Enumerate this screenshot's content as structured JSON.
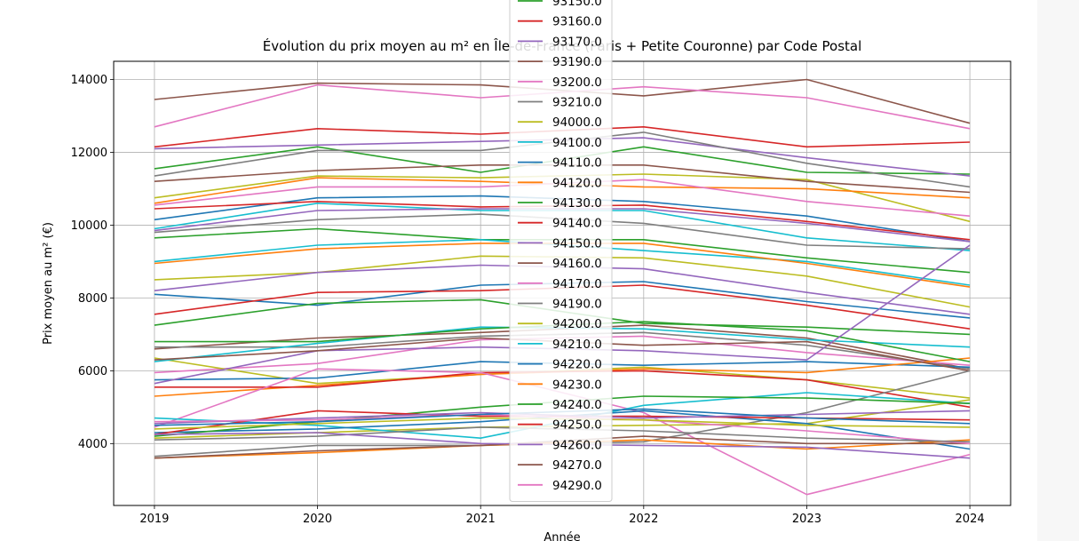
{
  "chart_data": {
    "type": "line",
    "title": "Évolution du prix moyen au m² en Île-de-France (Paris + Petite Couronne) par Code Postal",
    "xlabel": "Année",
    "ylabel": "Prix moyen au m² (€)",
    "x": [
      2019,
      2020,
      2021,
      2022,
      2023,
      2024
    ],
    "xlim": [
      2018.75,
      2024.25
    ],
    "ylim": [
      2300,
      14500
    ],
    "yticks": [
      4000,
      6000,
      8000,
      10000,
      12000,
      14000
    ],
    "xtick_labels": [
      "2019",
      "2020",
      "2021",
      "2022",
      "2023",
      "2024"
    ],
    "ytick_labels": [
      "4000",
      "6000",
      "8000",
      "10000",
      "12000",
      "14000"
    ],
    "grid": true,
    "legend_placement": "top-center",
    "series": [
      {
        "name": "93150.0",
        "color": "#2ca02c",
        "values": [
          11550,
          12150,
          11450,
          12150,
          11450,
          11400
        ]
      },
      {
        "name": "93160.0",
        "color": "#d62728",
        "values": [
          12150,
          12650,
          12500,
          12700,
          12150,
          12280
        ]
      },
      {
        "name": "93170.0",
        "color": "#9467bd",
        "values": [
          12100,
          12200,
          12300,
          12400,
          11850,
          11350
        ]
      },
      {
        "name": "93190.0",
        "color": "#8c564b",
        "values": [
          13450,
          13900,
          13850,
          13550,
          14000,
          12800
        ]
      },
      {
        "name": "93200.0",
        "color": "#e377c2",
        "values": [
          12700,
          13850,
          13500,
          13800,
          13500,
          12650
        ]
      },
      {
        "name": "93210.0",
        "color": "#7f7f7f",
        "values": [
          11350,
          12050,
          12050,
          12550,
          11700,
          11050
        ]
      },
      {
        "name": "94000.0",
        "color": "#bcbd22",
        "values": [
          10750,
          11350,
          11300,
          11400,
          11250,
          10100
        ]
      },
      {
        "name": "94100.0",
        "color": "#17becf",
        "values": [
          9900,
          10600,
          10400,
          10400,
          9650,
          9300
        ]
      },
      {
        "name": "94110.0",
        "color": "#1f77b4",
        "values": [
          10150,
          10750,
          10800,
          10650,
          10250,
          9550
        ]
      },
      {
        "name": "94120.0",
        "color": "#ff7f0e",
        "values": [
          10600,
          11300,
          11200,
          11050,
          11000,
          10750
        ]
      },
      {
        "name": "94130.0",
        "color": "#2ca02c",
        "values": [
          9650,
          9900,
          9600,
          9600,
          9100,
          8700
        ]
      },
      {
        "name": "94140.0",
        "color": "#d62728",
        "values": [
          10450,
          10650,
          10500,
          10550,
          10100,
          9600
        ]
      },
      {
        "name": "94150.0",
        "color": "#9467bd",
        "values": [
          9850,
          10400,
          10450,
          10450,
          10050,
          9550
        ]
      },
      {
        "name": "94160.0",
        "color": "#8c564b",
        "values": [
          11200,
          11500,
          11650,
          11650,
          11200,
          10900
        ]
      },
      {
        "name": "94170.0",
        "color": "#e377c2",
        "values": [
          10550,
          11050,
          11050,
          11250,
          10650,
          10250
        ]
      },
      {
        "name": "94190.0",
        "color": "#7f7f7f",
        "values": [
          9800,
          10150,
          10300,
          10050,
          9450,
          9350
        ]
      },
      {
        "name": "94200.0",
        "color": "#bcbd22",
        "values": [
          8500,
          8700,
          9150,
          9100,
          8600,
          7750
        ]
      },
      {
        "name": "94210.0",
        "color": "#17becf",
        "values": [
          9000,
          9450,
          9600,
          9300,
          9000,
          8350
        ]
      },
      {
        "name": "94220.0",
        "color": "#1f77b4",
        "values": [
          8100,
          7800,
          8350,
          8450,
          7900,
          7450
        ]
      },
      {
        "name": "94230.0",
        "color": "#ff7f0e",
        "values": [
          8950,
          9350,
          9500,
          9500,
          8950,
          8300
        ]
      },
      {
        "name": "94240.0",
        "color": "#2ca02c",
        "values": [
          7250,
          7850,
          7950,
          7300,
          7200,
          7000
        ]
      },
      {
        "name": "94250.0",
        "color": "#d62728",
        "values": [
          7550,
          8150,
          8200,
          8350,
          7800,
          7150
        ]
      },
      {
        "name": "94260.0",
        "color": "#9467bd",
        "values": [
          8200,
          8700,
          8900,
          8800,
          8150,
          7550
        ]
      },
      {
        "name": "94270.0",
        "color": "#8c564b",
        "values": [
          6600,
          6900,
          7050,
          7250,
          6900,
          6050
        ]
      },
      {
        "name": "94290.0",
        "color": "#e377c2",
        "values": [
          5950,
          6200,
          6850,
          6950,
          6500,
          6150
        ]
      },
      {
        "name": "",
        "color": "#7f7f7f",
        "values": [
          6650,
          6650,
          6950,
          7050,
          6700,
          6050
        ]
      },
      {
        "name": "",
        "color": "#bcbd22",
        "values": [
          6350,
          5650,
          5900,
          6100,
          5750,
          5250
        ]
      },
      {
        "name": "",
        "color": "#17becf",
        "values": [
          6250,
          6750,
          7200,
          7150,
          6850,
          6650
        ]
      },
      {
        "name": "",
        "color": "#1f77b4",
        "values": [
          5750,
          5800,
          6250,
          6150,
          6250,
          6100
        ]
      },
      {
        "name": "",
        "color": "#ff7f0e",
        "values": [
          5300,
          5600,
          5900,
          6050,
          5950,
          6350
        ]
      },
      {
        "name": "",
        "color": "#2ca02c",
        "values": [
          6800,
          6800,
          7150,
          7350,
          7100,
          6250
        ]
      },
      {
        "name": "",
        "color": "#d62728",
        "values": [
          5550,
          5550,
          5950,
          6000,
          5750,
          5000
        ]
      },
      {
        "name": "",
        "color": "#9467bd",
        "values": [
          5650,
          6550,
          6650,
          6550,
          6300,
          9450
        ]
      },
      {
        "name": "",
        "color": "#8c564b",
        "values": [
          6300,
          6550,
          6900,
          6700,
          6800,
          6000
        ]
      },
      {
        "name": "",
        "color": "#e377c2",
        "values": [
          4450,
          6050,
          5950,
          4850,
          2600,
          3700
        ]
      },
      {
        "name": "",
        "color": "#7f7f7f",
        "values": [
          3650,
          3950,
          3950,
          4050,
          4850,
          6000
        ]
      },
      {
        "name": "",
        "color": "#bcbd22",
        "values": [
          4150,
          4300,
          4450,
          4500,
          4550,
          5200
        ]
      },
      {
        "name": "",
        "color": "#17becf",
        "values": [
          4700,
          4500,
          4150,
          5050,
          5400,
          5100
        ]
      },
      {
        "name": "",
        "color": "#1f77b4",
        "values": [
          4300,
          4400,
          4600,
          4900,
          4550,
          3850
        ]
      },
      {
        "name": "",
        "color": "#ff7f0e",
        "values": [
          3600,
          3750,
          3950,
          4100,
          3850,
          4100
        ]
      },
      {
        "name": "",
        "color": "#2ca02c",
        "values": [
          4200,
          4600,
          5000,
          5300,
          5250,
          5100
        ]
      },
      {
        "name": "",
        "color": "#d62728",
        "values": [
          4250,
          4900,
          4750,
          4750,
          4700,
          4650
        ]
      },
      {
        "name": "",
        "color": "#9467bd",
        "values": [
          4550,
          4700,
          4850,
          4700,
          4800,
          4900
        ]
      },
      {
        "name": "",
        "color": "#8c564b",
        "values": [
          3600,
          3800,
          3950,
          4200,
          4000,
          4000
        ]
      },
      {
        "name": "",
        "color": "#e377c2",
        "values": [
          4600,
          4650,
          4800,
          4650,
          4350,
          4000
        ]
      },
      {
        "name": "",
        "color": "#7f7f7f",
        "values": [
          4100,
          4200,
          4450,
          4350,
          4150,
          4050
        ]
      },
      {
        "name": "",
        "color": "#bcbd22",
        "values": [
          4400,
          4550,
          4700,
          4650,
          4500,
          4450
        ]
      },
      {
        "name": "",
        "color": "#1f77b4",
        "values": [
          4500,
          4600,
          4800,
          4950,
          4700,
          4550
        ]
      },
      {
        "name": "",
        "color": "#9467bd",
        "values": [
          4250,
          4300,
          4000,
          3950,
          3900,
          3600
        ]
      }
    ]
  }
}
